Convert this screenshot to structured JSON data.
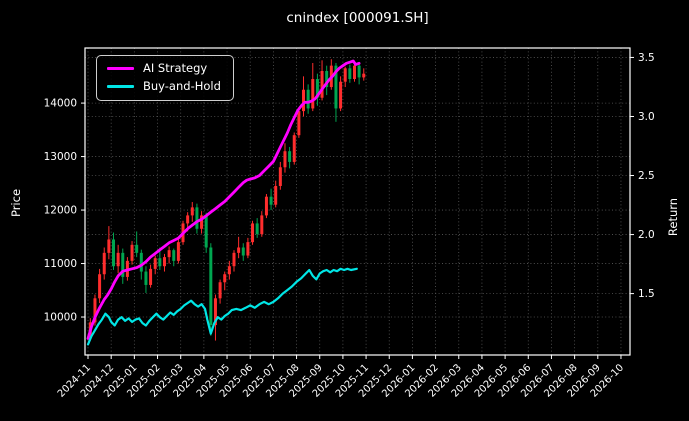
{
  "title": "cnindex [000091.SH]",
  "axes": {
    "left_label": "Price",
    "right_label": "Return",
    "x_tick_labels": [
      "2024-11",
      "2024-12",
      "2025-01",
      "2025-02",
      "2025-03",
      "2025-04",
      "2025-05",
      "2025-06",
      "2025-07",
      "2025-08",
      "2025-09",
      "2025-10",
      "2025-11",
      "2025-12",
      "2026-01",
      "2026-02",
      "2026-03",
      "2026-04",
      "2026-05",
      "2026-06",
      "2026-07",
      "2026-08",
      "2026-09",
      "2026-10"
    ],
    "price_ticks": [
      10000,
      11000,
      12000,
      13000,
      14000
    ],
    "return_ticks": [
      "1.5",
      "2.0",
      "2.5",
      "3.0",
      "3.5"
    ],
    "price_range": [
      9290,
      15030
    ],
    "return_range": [
      0.98,
      3.58
    ],
    "x_months": {
      "min": -0.13,
      "max": 23.39
    },
    "text_color": "#ffffff",
    "spine_color": "#ffffff",
    "grid_color": "#5a5a5a"
  },
  "chart_data": {
    "type": "candlestick+line",
    "title": "cnindex [000091.SH]",
    "x_unit": "months since 2024-11 (tick 0 = 2024-11, data ends ~2025-11)",
    "price_axis_label": "Price",
    "return_axis_label": "Return",
    "grid": "dotted, both axes",
    "legend_position": "upper left",
    "candles": {
      "up_color": "#ff2d2d",
      "down_color": "#00a650",
      "x_start": 0.1,
      "x_step": 0.2,
      "ohlc": [
        [
          9650,
          9980,
          9560,
          9900
        ],
        [
          9900,
          10420,
          9840,
          10350
        ],
        [
          10350,
          10900,
          10260,
          10800
        ],
        [
          10800,
          11300,
          10700,
          11200
        ],
        [
          11200,
          11700,
          11080,
          11450
        ],
        [
          11450,
          11580,
          10880,
          10950
        ],
        [
          10950,
          11350,
          10820,
          11200
        ],
        [
          11200,
          11280,
          10620,
          10750
        ],
        [
          10750,
          11120,
          10680,
          11050
        ],
        [
          11050,
          11420,
          10980,
          11350
        ],
        [
          11350,
          11600,
          11120,
          11200
        ],
        [
          11200,
          11260,
          10700,
          10850
        ],
        [
          10850,
          10950,
          10450,
          10600
        ],
        [
          10600,
          10980,
          10550,
          10900
        ],
        [
          10900,
          11150,
          10800,
          11100
        ],
        [
          11100,
          11300,
          10880,
          10950
        ],
        [
          10950,
          11180,
          10850,
          11120
        ],
        [
          11120,
          11320,
          11000,
          11250
        ],
        [
          11250,
          11280,
          10950,
          11050
        ],
        [
          11050,
          11480,
          11000,
          11400
        ],
        [
          11400,
          11800,
          11350,
          11750
        ],
        [
          11750,
          11960,
          11600,
          11900
        ],
        [
          11900,
          12150,
          11780,
          12050
        ],
        [
          12050,
          12120,
          11560,
          11650
        ],
        [
          11650,
          11980,
          11560,
          11900
        ],
        [
          11900,
          11950,
          11200,
          11300
        ],
        [
          11300,
          11380,
          9650,
          9850
        ],
        [
          9850,
          10420,
          9560,
          10350
        ],
        [
          10350,
          10700,
          10250,
          10650
        ],
        [
          10650,
          10850,
          10500,
          10800
        ],
        [
          10800,
          11050,
          10700,
          10950
        ],
        [
          10950,
          11250,
          10850,
          11200
        ],
        [
          11200,
          11500,
          11100,
          11300
        ],
        [
          11300,
          11380,
          11050,
          11150
        ],
        [
          11150,
          11480,
          11100,
          11400
        ],
        [
          11400,
          11800,
          11350,
          11750
        ],
        [
          11750,
          11850,
          11480,
          11550
        ],
        [
          11550,
          11980,
          11500,
          11900
        ],
        [
          11900,
          12300,
          11850,
          12250
        ],
        [
          12250,
          12400,
          12000,
          12100
        ],
        [
          12100,
          12550,
          12050,
          12450
        ],
        [
          12450,
          12900,
          12380,
          12800
        ],
        [
          12800,
          13250,
          12700,
          13100
        ],
        [
          13100,
          13180,
          12780,
          12900
        ],
        [
          12900,
          13450,
          12850,
          13400
        ],
        [
          13400,
          13900,
          13350,
          13850
        ],
        [
          13850,
          14500,
          13750,
          14250
        ],
        [
          14250,
          14350,
          13800,
          13900
        ],
        [
          13900,
          14750,
          13850,
          14450
        ],
        [
          14450,
          14550,
          13950,
          14100
        ],
        [
          14100,
          14800,
          14050,
          14600
        ],
        [
          14600,
          14700,
          14150,
          14300
        ],
        [
          14300,
          14820,
          14250,
          14700
        ],
        [
          14700,
          14750,
          13650,
          13900
        ],
        [
          13900,
          14500,
          13850,
          14400
        ],
        [
          14400,
          14680,
          14300,
          14650
        ],
        [
          14650,
          14720,
          14380,
          14450
        ],
        [
          14450,
          14760,
          14400,
          14700
        ],
        [
          14700,
          14730,
          14350,
          14480
        ],
        [
          14480,
          14650,
          14420,
          14550
        ]
      ]
    },
    "series": [
      {
        "name": "AI Strategy",
        "axis": "return",
        "color": "#ff00ff",
        "line_width": 2.8,
        "points": [
          [
            0,
            1.12
          ],
          [
            0.15,
            1.22
          ],
          [
            0.3,
            1.3
          ],
          [
            0.5,
            1.38
          ],
          [
            0.7,
            1.45
          ],
          [
            0.85,
            1.49
          ],
          [
            1.0,
            1.54
          ],
          [
            1.15,
            1.6
          ],
          [
            1.3,
            1.65
          ],
          [
            1.5,
            1.69
          ],
          [
            1.7,
            1.7
          ],
          [
            1.9,
            1.71
          ],
          [
            2.1,
            1.72
          ],
          [
            2.3,
            1.74
          ],
          [
            2.5,
            1.77
          ],
          [
            2.7,
            1.81
          ],
          [
            2.9,
            1.84
          ],
          [
            3.1,
            1.87
          ],
          [
            3.3,
            1.9
          ],
          [
            3.5,
            1.93
          ],
          [
            3.7,
            1.95
          ],
          [
            3.9,
            1.97
          ],
          [
            4.1,
            2.01
          ],
          [
            4.3,
            2.05
          ],
          [
            4.5,
            2.08
          ],
          [
            4.7,
            2.11
          ],
          [
            4.9,
            2.13
          ],
          [
            5.1,
            2.16
          ],
          [
            5.3,
            2.19
          ],
          [
            5.5,
            2.22
          ],
          [
            5.7,
            2.25
          ],
          [
            5.9,
            2.28
          ],
          [
            6.1,
            2.32
          ],
          [
            6.3,
            2.36
          ],
          [
            6.5,
            2.4
          ],
          [
            6.7,
            2.44
          ],
          [
            6.85,
            2.46
          ],
          [
            7.0,
            2.47
          ],
          [
            7.2,
            2.48
          ],
          [
            7.4,
            2.5
          ],
          [
            7.6,
            2.54
          ],
          [
            7.8,
            2.58
          ],
          [
            8.0,
            2.62
          ],
          [
            8.15,
            2.68
          ],
          [
            8.3,
            2.74
          ],
          [
            8.45,
            2.8
          ],
          [
            8.6,
            2.86
          ],
          [
            8.75,
            2.93
          ],
          [
            8.9,
            2.99
          ],
          [
            9.05,
            3.05
          ],
          [
            9.2,
            3.09
          ],
          [
            9.35,
            3.12
          ],
          [
            9.5,
            3.12
          ],
          [
            9.65,
            3.13
          ],
          [
            9.8,
            3.15
          ],
          [
            9.95,
            3.19
          ],
          [
            10.1,
            3.23
          ],
          [
            10.25,
            3.27
          ],
          [
            10.4,
            3.31
          ],
          [
            10.55,
            3.34
          ],
          [
            10.7,
            3.38
          ],
          [
            10.85,
            3.41
          ],
          [
            11.0,
            3.43
          ],
          [
            11.15,
            3.45
          ],
          [
            11.3,
            3.46
          ],
          [
            11.45,
            3.47
          ],
          [
            11.55,
            3.44
          ],
          [
            11.7,
            3.45
          ]
        ]
      },
      {
        "name": "Buy-and-Hold",
        "axis": "return",
        "color": "#00e6e6",
        "line_width": 2.2,
        "points": [
          [
            0,
            1.07
          ],
          [
            0.15,
            1.14
          ],
          [
            0.3,
            1.19
          ],
          [
            0.45,
            1.24
          ],
          [
            0.6,
            1.28
          ],
          [
            0.75,
            1.33
          ],
          [
            0.9,
            1.3
          ],
          [
            1.0,
            1.26
          ],
          [
            1.15,
            1.23
          ],
          [
            1.3,
            1.28
          ],
          [
            1.45,
            1.3
          ],
          [
            1.6,
            1.27
          ],
          [
            1.75,
            1.29
          ],
          [
            1.9,
            1.26
          ],
          [
            2.05,
            1.28
          ],
          [
            2.2,
            1.29
          ],
          [
            2.35,
            1.25
          ],
          [
            2.5,
            1.23
          ],
          [
            2.65,
            1.27
          ],
          [
            2.8,
            1.3
          ],
          [
            2.95,
            1.33
          ],
          [
            3.1,
            1.3
          ],
          [
            3.25,
            1.28
          ],
          [
            3.4,
            1.31
          ],
          [
            3.55,
            1.34
          ],
          [
            3.7,
            1.32
          ],
          [
            3.85,
            1.35
          ],
          [
            4.0,
            1.37
          ],
          [
            4.15,
            1.4
          ],
          [
            4.3,
            1.42
          ],
          [
            4.45,
            1.44
          ],
          [
            4.6,
            1.41
          ],
          [
            4.75,
            1.39
          ],
          [
            4.9,
            1.41
          ],
          [
            5.05,
            1.37
          ],
          [
            5.15,
            1.28
          ],
          [
            5.3,
            1.16
          ],
          [
            5.45,
            1.25
          ],
          [
            5.6,
            1.3
          ],
          [
            5.75,
            1.28
          ],
          [
            5.9,
            1.31
          ],
          [
            6.05,
            1.33
          ],
          [
            6.2,
            1.36
          ],
          [
            6.4,
            1.37
          ],
          [
            6.6,
            1.36
          ],
          [
            6.8,
            1.38
          ],
          [
            7.0,
            1.4
          ],
          [
            7.2,
            1.38
          ],
          [
            7.4,
            1.41
          ],
          [
            7.6,
            1.43
          ],
          [
            7.8,
            1.41
          ],
          [
            8.0,
            1.43
          ],
          [
            8.2,
            1.46
          ],
          [
            8.4,
            1.5
          ],
          [
            8.6,
            1.53
          ],
          [
            8.8,
            1.56
          ],
          [
            9.0,
            1.6
          ],
          [
            9.2,
            1.63
          ],
          [
            9.4,
            1.67
          ],
          [
            9.55,
            1.7
          ],
          [
            9.7,
            1.65
          ],
          [
            9.85,
            1.62
          ],
          [
            10.0,
            1.67
          ],
          [
            10.15,
            1.69
          ],
          [
            10.3,
            1.7
          ],
          [
            10.45,
            1.68
          ],
          [
            10.6,
            1.7
          ],
          [
            10.75,
            1.69
          ],
          [
            10.9,
            1.71
          ],
          [
            11.05,
            1.7
          ],
          [
            11.2,
            1.71
          ],
          [
            11.35,
            1.7
          ],
          [
            11.6,
            1.71
          ]
        ]
      }
    ]
  }
}
